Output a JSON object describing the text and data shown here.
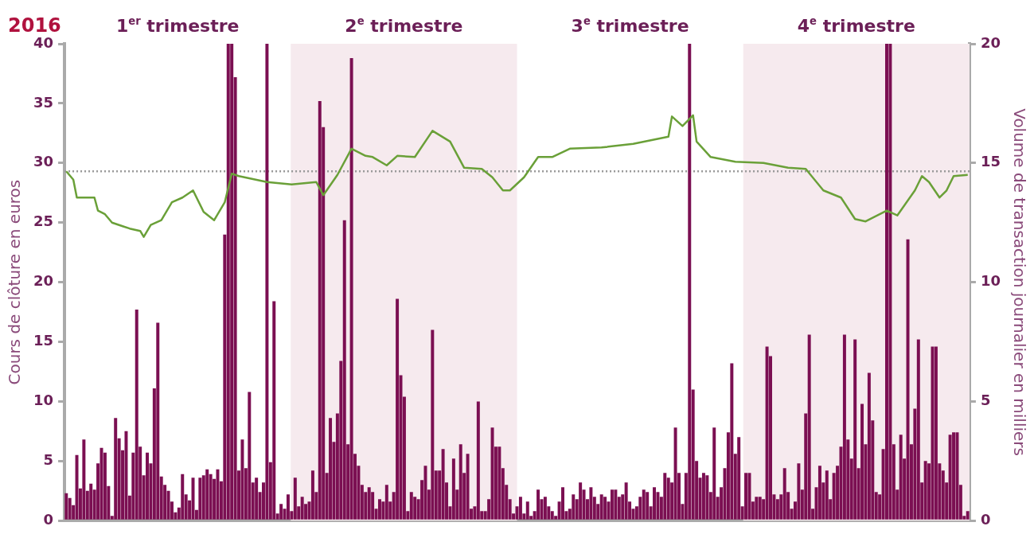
{
  "chart_data": {
    "type": "bar",
    "title": "2016",
    "ylabel": "Cours de clôture en euros",
    "y2label": "Volume de transaction journalier en milliers",
    "annotations": [
      "1$^{er}$ trimestre",
      "2$^{e}$ trimestre",
      "3$^{e}$ trimestre",
      "4$^{e}$ trimestre"
    ],
    "categories": [
      null,
      null,
      null,
      null,
      null,
      null,
      null,
      null,
      null,
      null,
      null,
      null,
      null,
      null,
      null,
      null,
      null,
      null,
      null,
      null,
      null,
      null,
      null,
      null,
      null,
      null,
      null,
      null,
      null,
      null,
      null,
      null,
      null,
      null,
      null,
      null,
      null,
      null,
      null,
      null,
      null,
      null,
      null,
      null,
      null,
      null,
      null,
      null,
      null,
      null,
      null,
      null,
      null,
      null,
      null,
      null,
      null,
      null,
      null,
      null,
      null,
      null,
      null,
      null,
      null,
      null,
      null,
      null,
      null,
      null,
      null,
      null,
      null,
      null,
      null,
      null,
      null,
      null,
      null,
      null,
      null,
      null,
      null,
      null,
      null,
      null,
      null,
      null,
      null,
      null,
      null,
      null,
      null,
      null,
      null,
      null,
      null,
      null,
      null,
      null,
      null,
      null,
      null,
      null,
      null,
      null,
      null,
      null,
      null,
      null,
      null,
      null,
      null,
      null,
      null,
      null,
      null,
      null,
      null,
      null,
      null,
      null,
      null,
      null,
      null,
      null,
      null,
      null,
      null,
      null,
      null,
      null,
      null,
      null,
      null,
      null,
      null,
      null,
      null,
      null,
      null,
      null,
      null,
      null,
      null,
      null,
      null,
      null,
      null,
      null,
      null,
      null,
      null,
      null,
      null,
      null,
      null,
      null,
      null,
      null,
      null,
      null,
      null,
      null,
      null,
      null,
      null,
      null,
      null,
      null,
      null,
      null,
      null,
      null,
      null,
      null,
      null,
      null,
      null,
      null,
      null,
      null,
      null,
      null,
      null,
      null,
      null,
      null,
      null,
      null,
      null,
      null,
      null,
      null,
      null,
      null,
      null,
      null,
      null,
      null,
      null,
      null,
      null,
      null,
      null,
      null,
      null,
      null,
      null,
      null,
      null,
      null,
      null,
      null,
      null,
      null,
      null,
      null,
      null,
      null,
      null,
      null,
      null,
      null,
      null,
      null,
      null,
      null,
      null,
      null,
      null,
      null,
      null,
      null,
      null,
      null,
      null,
      null,
      null,
      null,
      null,
      null,
      null,
      null,
      null,
      null,
      null,
      null,
      null,
      null,
      null,
      null,
      null,
      null,
      null,
      null,
      null
    ],
    "series": [
      {
        "axis": "y2",
        "color": "#7b0f52",
        "values": [
          1.15,
          0.95,
          0.65,
          2.75,
          1.35,
          3.4,
          1.25,
          1.55,
          1.3,
          2.4,
          3.05,
          2.85,
          1.45,
          0.2,
          4.3,
          3.45,
          2.95,
          3.75,
          1.05,
          2.85,
          8.85,
          3.1,
          1.9,
          2.85,
          2.4,
          5.55,
          8.3,
          1.85,
          1.5,
          1.25,
          0.8,
          0.35,
          0.55,
          1.95,
          1.1,
          0.85,
          1.8,
          0.45,
          1.8,
          1.9,
          2.15,
          1.95,
          1.75,
          2.15,
          1.65,
          12,
          20,
          20,
          18.6,
          2.1,
          3.4,
          2.2,
          5.4,
          1.6,
          1.8,
          1.2,
          1.6,
          20,
          2.45,
          9.2,
          0.3,
          0.7,
          0.5,
          1.1,
          0.4,
          1.8,
          0.6,
          1.0,
          0.7,
          0.8,
          2.1,
          1.2,
          17.6,
          16.5,
          2.0,
          4.3,
          3.3,
          4.5,
          6.7,
          12.6,
          3.2,
          19.4,
          2.8,
          2.3,
          1.5,
          1.2,
          1.4,
          1.2,
          0.5,
          0.9,
          0.8,
          1.5,
          0.8,
          1.2,
          9.3,
          6.1,
          5.2,
          0.4,
          1.2,
          1.0,
          0.9,
          1.7,
          2.3,
          1.3,
          8.0,
          2.1,
          2.1,
          3.0,
          1.6,
          0.6,
          2.6,
          1.3,
          3.2,
          2.0,
          2.8,
          0.5,
          0.6,
          5.0,
          0.4,
          0.4,
          0.9,
          3.9,
          3.1,
          3.1,
          2.2,
          1.5,
          0.9,
          0.3,
          0.6,
          1.0,
          0.3,
          0.8,
          0.2,
          0.4,
          1.3,
          0.9,
          1.0,
          0.6,
          0.4,
          0.2,
          0.8,
          1.4,
          0.4,
          0.5,
          1.1,
          0.9,
          1.6,
          1.3,
          0.9,
          1.4,
          1.0,
          0.7,
          1.1,
          1.0,
          0.8,
          1.3,
          1.3,
          1.0,
          1.1,
          1.6,
          0.8,
          0.5,
          0.6,
          1.0,
          1.3,
          1.2,
          0.6,
          1.4,
          1.2,
          1.0,
          2.0,
          1.8,
          1.6,
          3.9,
          2.0,
          0.7,
          2.0,
          20,
          5.5,
          2.5,
          1.8,
          2.0,
          1.9,
          1.2,
          3.9,
          1.0,
          1.4,
          2.2,
          3.7,
          6.6,
          2.8,
          3.5,
          0.6,
          2.0,
          2.0,
          0.8,
          1.0,
          1.0,
          0.9,
          7.3,
          6.9,
          1.1,
          0.9,
          1.1,
          2.2,
          1.2,
          0.5,
          0.8,
          2.4,
          1.3,
          4.5,
          7.8,
          0.5,
          1.4,
          2.3,
          1.6,
          2.1,
          0.9,
          2.0,
          2.3,
          3.1,
          7.8,
          3.4,
          2.6,
          7.6,
          2.2,
          4.9,
          3.2,
          6.2,
          4.2,
          1.2,
          1.1,
          3.0,
          20,
          20,
          3.2,
          1.3,
          3.6,
          2.6,
          11.8,
          3.2,
          4.7,
          7.6,
          1.6,
          2.5,
          2.4,
          7.3,
          7.3,
          2.4,
          2.1,
          1.6,
          3.6,
          3.7,
          3.7,
          1.5,
          0.2,
          0.4
        ]
      },
      {
        "type": "line",
        "color": "#6aa038",
        "values": [
          29.3,
          null,
          28.6,
          27.1,
          null,
          null,
          null,
          null,
          27.1,
          26.0,
          null,
          25.7,
          null,
          25.0,
          null,
          null,
          24.7,
          null,
          24.5,
          null,
          null,
          24.3,
          23.8,
          null,
          24.8,
          null,
          null,
          25.2,
          null,
          null,
          26.7,
          null,
          null,
          27.1,
          null,
          null,
          27.7,
          null,
          null,
          25.9,
          null,
          null,
          25.2,
          null,
          null,
          26.7,
          null,
          29.1,
          null,
          28.9,
          null,
          null,
          null,
          null,
          null,
          null,
          null,
          28.4,
          null,
          null,
          null,
          null,
          null,
          null,
          28.2,
          null,
          null,
          null,
          null,
          null,
          null,
          28.4,
          null,
          27.3,
          null,
          null,
          null,
          29.0,
          null,
          null,
          null,
          31.2,
          null,
          null,
          null,
          30.6,
          null,
          30.5,
          null,
          null,
          null,
          29.8,
          null,
          null,
          30.6,
          null,
          null,
          null,
          null,
          30.5,
          null,
          null,
          null,
          null,
          32.7,
          null,
          null,
          null,
          null,
          31.8,
          null,
          null,
          null,
          29.6,
          null,
          null,
          null,
          null,
          29.5,
          null,
          null,
          28.8,
          null,
          null,
          27.7,
          null,
          27.7,
          null,
          null,
          null,
          28.8,
          null,
          null,
          null,
          30.5,
          null,
          null,
          null,
          30.5,
          null,
          null,
          null,
          null,
          31.2,
          null,
          null,
          null,
          null,
          null,
          null,
          null,
          null,
          31.3,
          null,
          null,
          null,
          null,
          null,
          null,
          null,
          null,
          31.6,
          null,
          null,
          null,
          null,
          null,
          null,
          null,
          null,
          null,
          32.2,
          33.9,
          null,
          null,
          33.1,
          null,
          null,
          34.0,
          31.8,
          null,
          null,
          null,
          30.5,
          null,
          null,
          null,
          null,
          null,
          null,
          30.1,
          null,
          null,
          null,
          null,
          null,
          null,
          null,
          30.0,
          null,
          null,
          null,
          null,
          null,
          null,
          29.6,
          null,
          null,
          null,
          null,
          29.5,
          null,
          null,
          null,
          null,
          27.7,
          null,
          null,
          null,
          null,
          27.1,
          null,
          null,
          null,
          25.3,
          null,
          null,
          25.1,
          null,
          null,
          null,
          null,
          null,
          26.0,
          null,
          null,
          25.6,
          null,
          null,
          null,
          null,
          27.7,
          null,
          28.9,
          null,
          28.4,
          null,
          null,
          27.1,
          null,
          27.7,
          null,
          28.9,
          null,
          null,
          null,
          29.0
        ]
      }
    ],
    "ylim": [
      0,
      40
    ],
    "yticks": [
      0,
      5,
      10,
      15,
      20,
      25,
      30,
      35,
      40
    ],
    "y2lim": [
      0,
      20
    ],
    "y2ticks": [
      0,
      5,
      10,
      15,
      20
    ],
    "ref_lines": [
      {
        "axis": "y",
        "value": 29.3,
        "color": "#999999",
        "line_style": "dotted"
      }
    ],
    "grid": false,
    "legend": false,
    "marker": "none",
    "line_style": "solid"
  }
}
